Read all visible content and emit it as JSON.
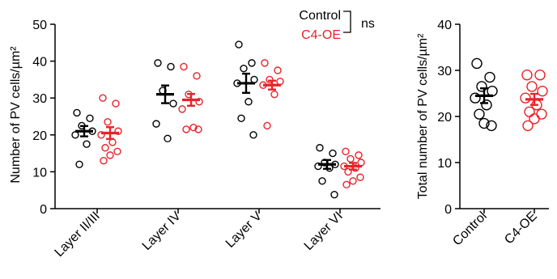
{
  "chart_data": [
    {
      "type": "scatter",
      "ylabel": "Number of PV cells/µm²",
      "ylim": [
        0,
        50
      ],
      "yticks": [
        0,
        10,
        20,
        30,
        40,
        50
      ],
      "categories": [
        "Layer II/III",
        "Layer IV",
        "Layer V",
        "Layer VI"
      ],
      "legend": {
        "placement": "top",
        "entries": [
          "Control",
          "C4-OE"
        ],
        "annotation": "ns"
      },
      "series": [
        {
          "name": "Control",
          "color": "#000000",
          "means": [
            21.0,
            31.0,
            34.0,
            12.0
          ],
          "sems": [
            1.4,
            2.4,
            2.6,
            1.2
          ],
          "points": [
            [
              26.0,
              24.5,
              22.5,
              21.0,
              20.0,
              17.5,
              12.0
            ],
            [
              39.5,
              38.5,
              32.0,
              28.5,
              23.0,
              19.0
            ],
            [
              44.5,
              39.5,
              38.0,
              35.0,
              34.0,
              29.0,
              24.5,
              20.0
            ],
            [
              16.5,
              15.0,
              12.5,
              12.0,
              11.5,
              11.0,
              7.5,
              3.8
            ]
          ]
        },
        {
          "name": "C4-OE",
          "color": "#e8232a",
          "means": [
            20.5,
            29.5,
            33.5,
            11.5
          ],
          "sems": [
            1.6,
            1.6,
            1.2,
            0.9
          ],
          "points": [
            [
              30.0,
              28.5,
              23.5,
              21.0,
              20.0,
              18.0,
              16.5,
              15.5,
              14.5,
              13.0
            ],
            [
              38.5,
              36.0,
              31.0,
              29.0,
              27.0,
              22.0,
              21.5,
              21.5
            ],
            [
              39.5,
              37.5,
              35.0,
              34.5,
              33.5,
              31.0,
              22.5
            ],
            [
              15.5,
              14.5,
              13.5,
              12.5,
              11.5,
              11.0,
              10.0,
              8.5,
              7.5,
              6.5
            ]
          ]
        }
      ]
    },
    {
      "type": "scatter",
      "ylabel": "Total number of PV cells/µm²",
      "ylim": [
        0,
        40
      ],
      "yticks": [
        0,
        10,
        20,
        30,
        40
      ],
      "categories": [
        "Control",
        "C4-OE"
      ],
      "series": [
        {
          "name": "Control",
          "color": "#000000",
          "mean": 24.5,
          "sem": 1.6,
          "points": [
            31.5,
            28.5,
            26.5,
            25.5,
            24.0,
            22.5,
            20.5,
            18.0,
            18.5
          ]
        },
        {
          "name": "C4-OE",
          "color": "#e8232a",
          "mean": 23.7,
          "sem": 1.2,
          "points": [
            29.0,
            29.0,
            26.5,
            25.5,
            24.0,
            22.5,
            21.0,
            20.5,
            19.5,
            18.0
          ]
        }
      ]
    }
  ]
}
